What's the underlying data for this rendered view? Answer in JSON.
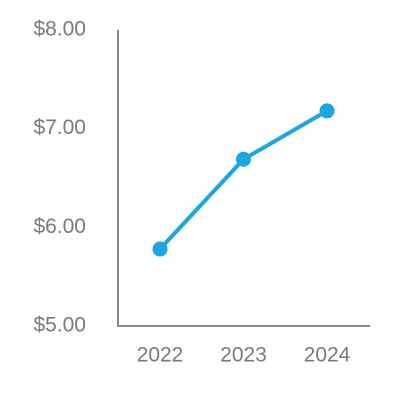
{
  "chart_data": {
    "type": "line",
    "categories": [
      "2022",
      "2023",
      "2024"
    ],
    "series": [
      {
        "color": "#1aa7e0",
        "values": [
          5.78,
          6.69,
          7.18
        ]
      }
    ],
    "ylim": [
      5,
      8
    ],
    "yticks": [
      {
        "value": 5,
        "label": "$5.00"
      },
      {
        "value": 6,
        "label": "$6.00"
      },
      {
        "value": 7,
        "label": "$7.00"
      },
      {
        "value": 8,
        "label": "$8.00"
      }
    ],
    "grid": false
  }
}
